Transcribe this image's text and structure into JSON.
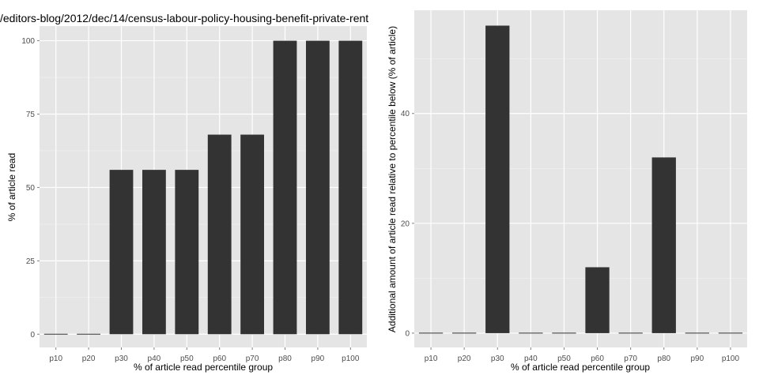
{
  "chart_data": [
    {
      "type": "bar",
      "title": "/editors-blog/2012/dec/14/census-labour-policy-housing-benefit-private-rent",
      "xlabel": "% of article read percentile group",
      "ylabel": "% of article read",
      "categories": [
        "p10",
        "p20",
        "p30",
        "p40",
        "p50",
        "p60",
        "p70",
        "p80",
        "p90",
        "p100"
      ],
      "values": [
        0,
        0,
        56,
        56,
        56,
        68,
        68,
        100,
        100,
        100
      ],
      "ylim": [
        -4.5,
        105
      ],
      "yticks": [
        0,
        25,
        50,
        75,
        100
      ],
      "grid": true,
      "bar_color": "#333333",
      "panel_color": "#e5e5e5",
      "grid_color": "#ffffff"
    },
    {
      "type": "bar",
      "title": "",
      "xlabel": "% of article read percentile group",
      "ylabel": "Additional amount of article read relative to percentile below (% of article)",
      "categories": [
        "p10",
        "p20",
        "p30",
        "p40",
        "p50",
        "p60",
        "p70",
        "p80",
        "p90",
        "p100"
      ],
      "values": [
        0,
        0,
        56,
        0,
        0,
        12,
        0,
        32,
        0,
        0
      ],
      "ylim": [
        -2.6,
        58.8
      ],
      "yticks": [
        0,
        20,
        40
      ],
      "grid": true,
      "bar_color": "#333333",
      "panel_color": "#e5e5e5",
      "grid_color": "#ffffff"
    }
  ]
}
